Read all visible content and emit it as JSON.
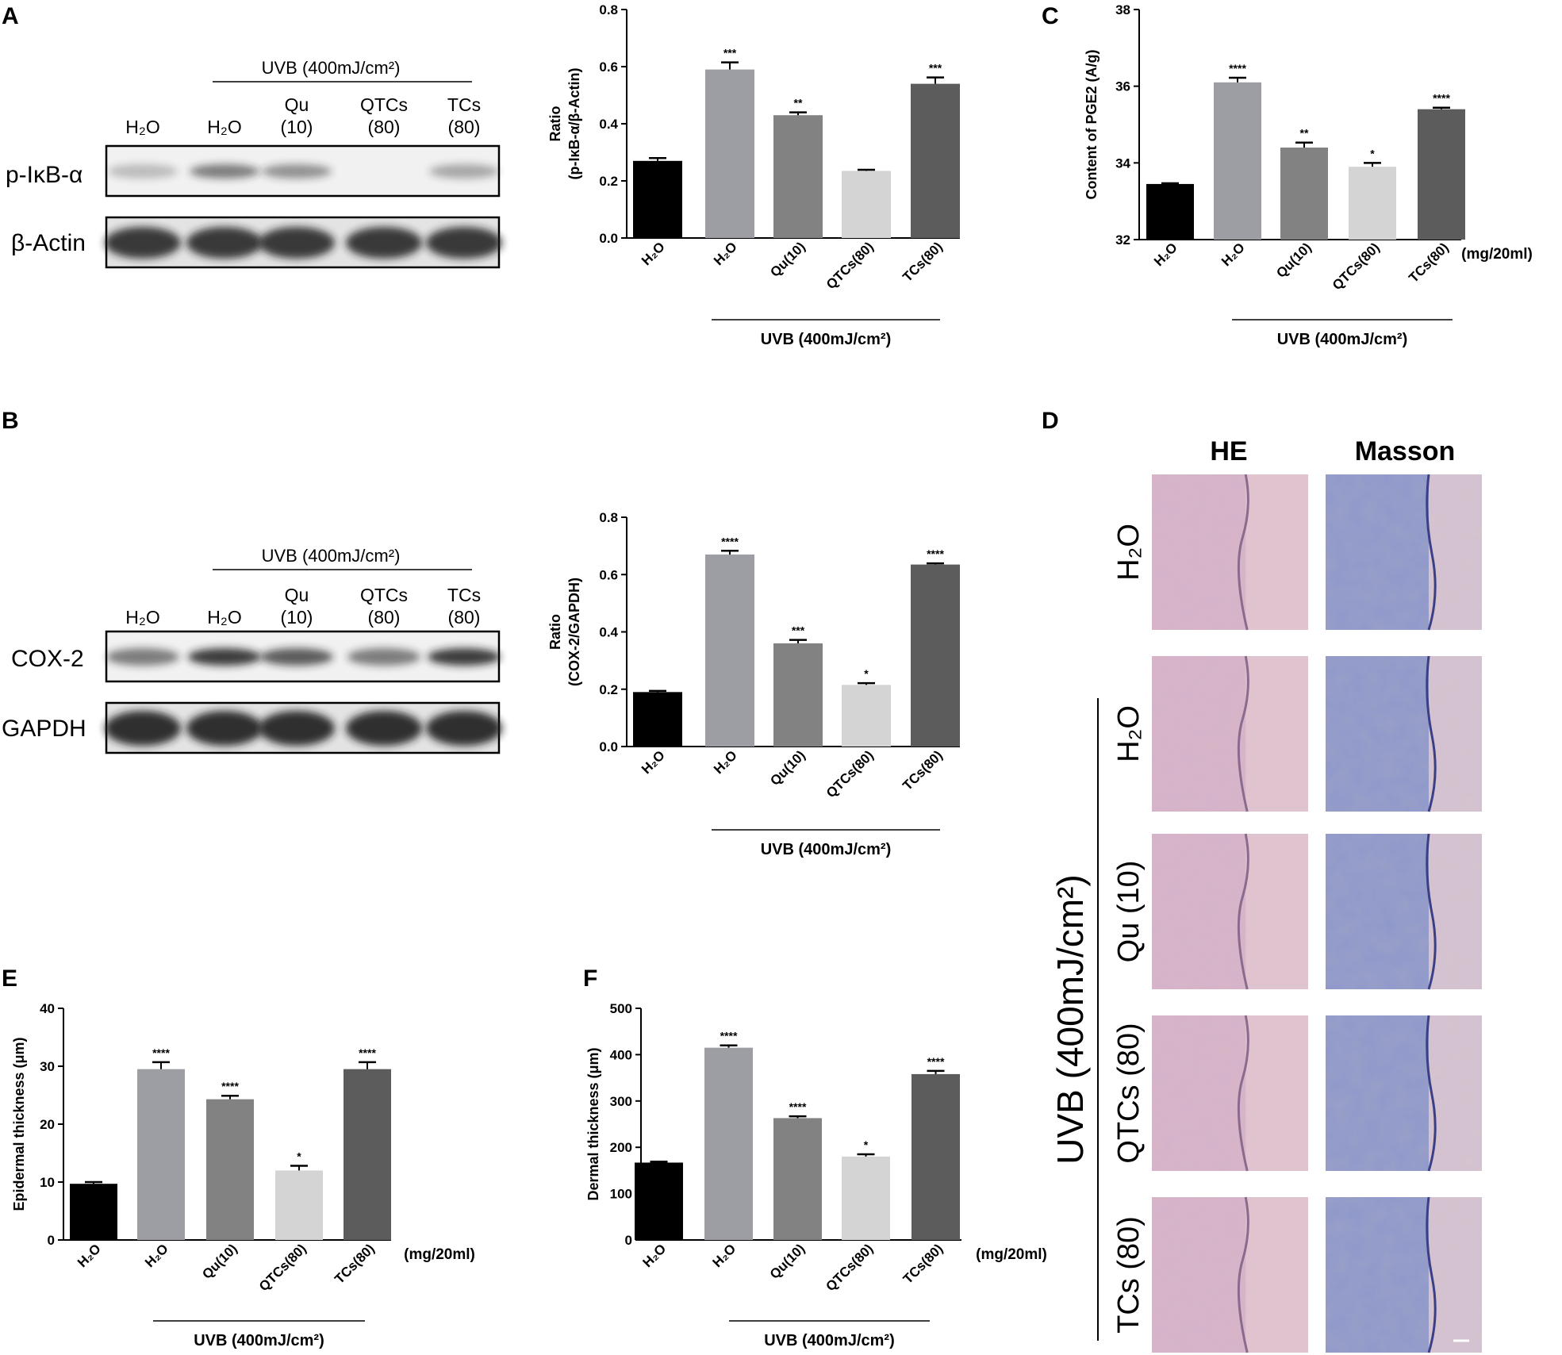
{
  "panels": {
    "A": {
      "label": "A",
      "uvb_label": "UVB (400mJ/cm²)",
      "lanes": [
        {
          "l1": "H₂O",
          "l2": ""
        },
        {
          "l1": "H₂O",
          "l2": ""
        },
        {
          "l1": "Qu",
          "l2": "(10)"
        },
        {
          "l1": "QTCs",
          "l2": "(80)"
        },
        {
          "l1": "TCs",
          "l2": "(80)"
        }
      ],
      "blots": [
        {
          "name": "p-IκB-α",
          "intensity": [
            0.25,
            0.55,
            0.45,
            0.0,
            0.35
          ]
        },
        {
          "name": "β-Actin",
          "intensity": [
            0.85,
            0.85,
            0.85,
            0.85,
            0.85
          ]
        }
      ]
    },
    "B": {
      "label": "B",
      "uvb_label": "UVB (400mJ/cm²)",
      "lanes": [
        {
          "l1": "H₂O",
          "l2": ""
        },
        {
          "l1": "H₂O",
          "l2": ""
        },
        {
          "l1": "Qu",
          "l2": "(10)"
        },
        {
          "l1": "QTCs",
          "l2": "(80)"
        },
        {
          "l1": "TCs",
          "l2": "(80)"
        }
      ],
      "blots": [
        {
          "name": "COX-2",
          "intensity": [
            0.55,
            0.85,
            0.7,
            0.55,
            0.85
          ]
        },
        {
          "name": "GAPDH",
          "intensity": [
            0.9,
            0.9,
            0.9,
            0.9,
            0.9
          ]
        }
      ]
    },
    "C": {
      "label": "C"
    },
    "D": {
      "label": "D",
      "columns": [
        "HE",
        "Masson"
      ],
      "rows": [
        "H₂O",
        "H₂O",
        "Qu (10)",
        "QTCs (80)",
        "TCs (80)"
      ],
      "uvb_label": "UVB (400mJ/cm²)"
    },
    "E": {
      "label": "E"
    },
    "F": {
      "label": "F"
    }
  },
  "chart_data": [
    {
      "id": "chartA",
      "type": "bar",
      "ylabel_lines": [
        "Ratio",
        "(p-IκB-α/β-Actin)"
      ],
      "categories": [
        "H₂O",
        "H₂O",
        "Qu(10)",
        "QTCs(80)",
        "TCs(80)"
      ],
      "values": [
        0.27,
        0.59,
        0.43,
        0.235,
        0.54
      ],
      "errors": [
        0.01,
        0.025,
        0.01,
        0.004,
        0.022
      ],
      "significance": [
        "",
        "***",
        "**",
        "",
        "***"
      ],
      "ylim": [
        0,
        0.8
      ],
      "yticks": [
        "0.0",
        "0.2",
        "0.4",
        "0.6",
        "0.8"
      ],
      "group_label": "UVB (400mJ/cm²)",
      "unit": "",
      "colors": [
        "#000000",
        "#9d9ea3",
        "#828282",
        "#d4d4d4",
        "#5c5c5c"
      ]
    },
    {
      "id": "chartB",
      "type": "bar",
      "ylabel_lines": [
        "Ratio",
        "(COX-2/GAPDH)"
      ],
      "categories": [
        "H₂O",
        "H₂O",
        "Qu(10)",
        "QTCs(80)",
        "TCs(80)"
      ],
      "values": [
        0.19,
        0.67,
        0.36,
        0.215,
        0.635
      ],
      "errors": [
        0.004,
        0.013,
        0.012,
        0.006,
        0.004
      ],
      "significance": [
        "",
        "****",
        "***",
        "*",
        "****"
      ],
      "ylim": [
        0,
        0.8
      ],
      "yticks": [
        "0.0",
        "0.2",
        "0.4",
        "0.6",
        "0.8"
      ],
      "group_label": "UVB (400mJ/cm²)",
      "unit": "",
      "colors": [
        "#000000",
        "#9d9ea3",
        "#828282",
        "#d4d4d4",
        "#5c5c5c"
      ]
    },
    {
      "id": "chartC",
      "type": "bar",
      "ylabel_lines": [
        "Content of PGE2 (A/g)"
      ],
      "categories": [
        "H₂O",
        "H₂O",
        "Qu(10)",
        "QTCs(80)",
        "TCs(80)"
      ],
      "values": [
        33.45,
        36.1,
        34.4,
        33.9,
        35.4
      ],
      "errors": [
        0.02,
        0.12,
        0.13,
        0.1,
        0.04
      ],
      "significance": [
        "",
        "****",
        "**",
        "*",
        "****"
      ],
      "ylim": [
        32,
        38
      ],
      "yticks": [
        "32",
        "34",
        "36",
        "38"
      ],
      "group_label": "UVB (400mJ/cm²)",
      "unit": "(mg/20ml)",
      "colors": [
        "#000000",
        "#9d9ea3",
        "#828282",
        "#d4d4d4",
        "#5c5c5c"
      ]
    },
    {
      "id": "chartE",
      "type": "bar",
      "ylabel_lines": [
        "Epidermal thickness (μm)"
      ],
      "categories": [
        "H₂O",
        "H₂O",
        "Qu(10)",
        "QTCs(80)",
        "TCs(80)"
      ],
      "values": [
        9.7,
        29.5,
        24.3,
        12.0,
        29.5
      ],
      "errors": [
        0.3,
        1.2,
        0.6,
        0.8,
        1.2
      ],
      "significance": [
        "",
        "****",
        "****",
        "*",
        "****"
      ],
      "ylim": [
        0,
        40
      ],
      "yticks": [
        "0",
        "10",
        "20",
        "30",
        "40"
      ],
      "group_label": "UVB (400mJ/cm²)",
      "unit": "(mg/20ml)",
      "colors": [
        "#000000",
        "#9d9ea3",
        "#828282",
        "#d4d4d4",
        "#5c5c5c"
      ]
    },
    {
      "id": "chartF",
      "type": "bar",
      "ylabel_lines": [
        "Dermal thickness (μm)"
      ],
      "categories": [
        "H₂O",
        "H₂O",
        "Qu(10)",
        "QTCs(80)",
        "TCs(80)"
      ],
      "values": [
        167,
        415,
        263,
        180,
        358
      ],
      "errors": [
        2,
        5,
        4,
        5,
        7
      ],
      "significance": [
        "",
        "****",
        "****",
        "*",
        "****"
      ],
      "ylim": [
        0,
        500
      ],
      "yticks": [
        "0",
        "100",
        "200",
        "300",
        "400",
        "500"
      ],
      "group_label": "UVB (400mJ/cm²)",
      "unit": "(mg/20ml)",
      "colors": [
        "#000000",
        "#9d9ea3",
        "#828282",
        "#d4d4d4",
        "#5c5c5c"
      ]
    }
  ]
}
